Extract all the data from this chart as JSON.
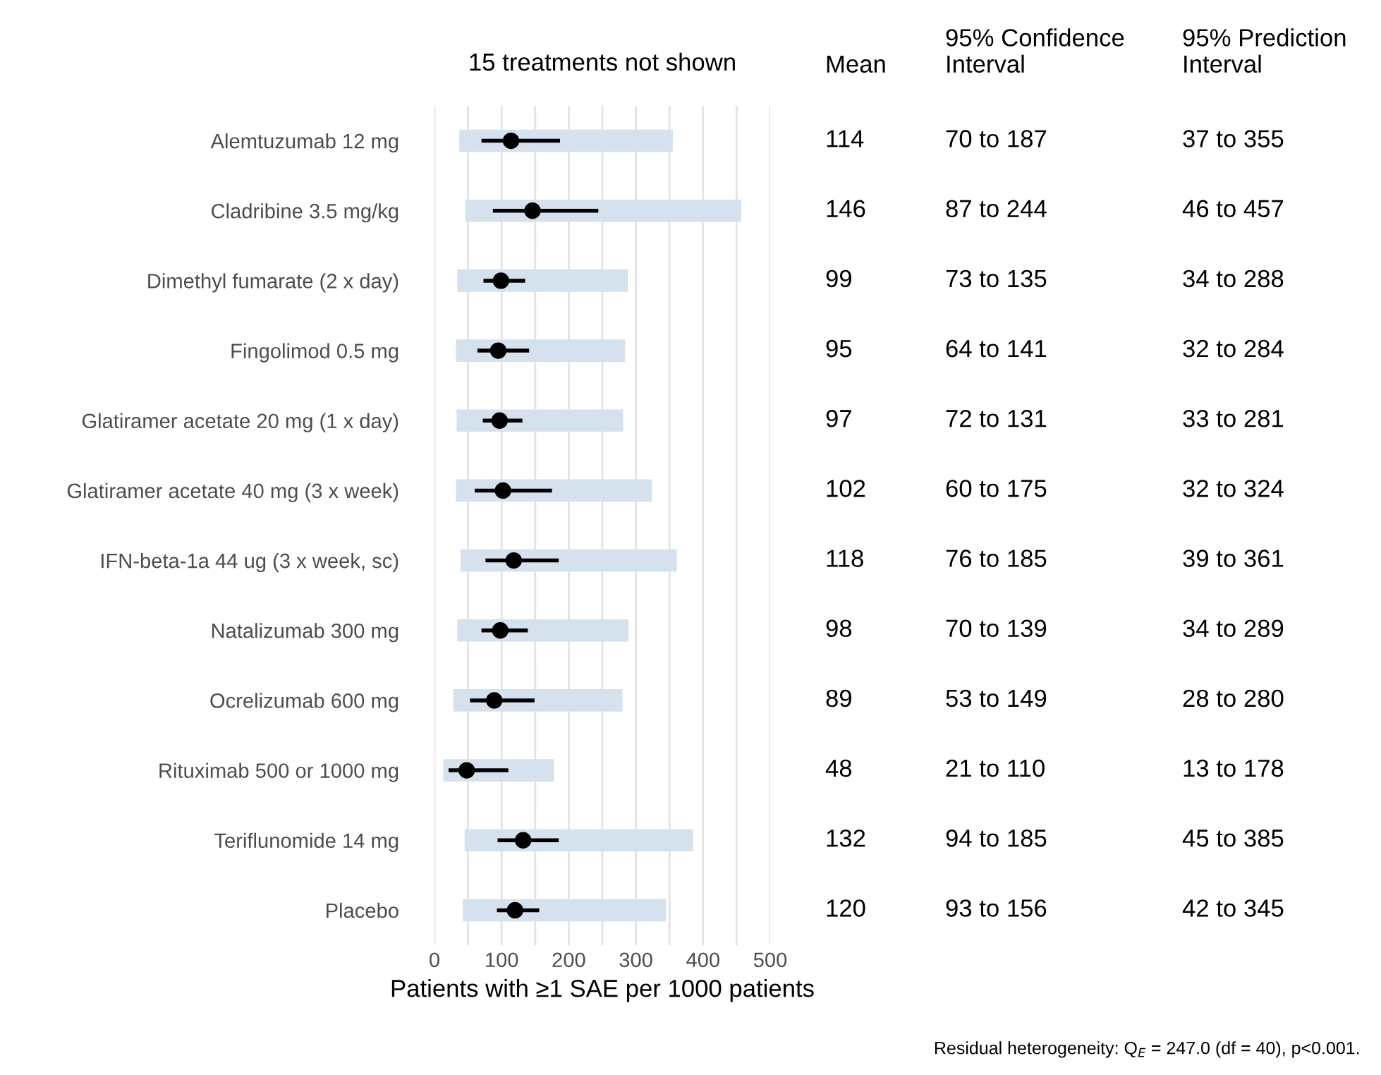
{
  "chart_data": {
    "type": "scatter",
    "orientation": "horizontal",
    "title": "15 treatments not shown",
    "xlabel": "Patients with ≥1 SAE per 1000 patients",
    "categories": [
      "Alemtuzumab 12 mg",
      "Cladribine 3.5 mg/kg",
      "Dimethyl fumarate (2 x day)",
      "Fingolimod 0.5 mg",
      "Glatiramer acetate 20 mg (1 x day)",
      "Glatiramer acetate 40 mg (3 x week)",
      "IFN-beta-1a 44 ug (3 x week, sc)",
      "Natalizumab 300 mg",
      "Ocrelizumab 600 mg",
      "Rituximab 500 or 1000 mg",
      "Teriflunomide 14 mg",
      "Placebo"
    ],
    "series": [
      {
        "type": "bar",
        "color": "#d5e1ed",
        "base": [
          37,
          46,
          34,
          32,
          33,
          32,
          39,
          34,
          28,
          13,
          45,
          42
        ],
        "values": [
          318,
          411,
          254,
          252,
          248,
          292,
          322,
          255,
          252,
          165,
          340,
          303
        ]
      },
      {
        "color": "#000000",
        "values": [
          114,
          146,
          99,
          95,
          97,
          102,
          118,
          98,
          89,
          48,
          132,
          120
        ],
        "errors": [
          [
            70,
            187
          ],
          [
            87,
            244
          ],
          [
            73,
            135
          ],
          [
            64,
            141
          ],
          [
            72,
            131
          ],
          [
            60,
            175
          ],
          [
            76,
            185
          ],
          [
            70,
            139
          ],
          [
            53,
            149
          ],
          [
            21,
            110
          ],
          [
            94,
            185
          ],
          [
            93,
            156
          ]
        ]
      }
    ],
    "xlim": [
      0,
      500
    ],
    "xticks": [
      0,
      {
        "value": 50,
        "label": null
      },
      100,
      {
        "value": 150,
        "label": null
      },
      200,
      {
        "value": 250,
        "label": null
      },
      300,
      {
        "value": 350,
        "label": null
      },
      400,
      {
        "value": 450,
        "label": null
      },
      500
    ],
    "grid": "x",
    "legend": false,
    "marker": "circle",
    "annotations": [
      "Mean",
      "95% Confidence\nInterval",
      "95% Prediction\nInterval",
      "114",
      "70 to 187",
      "37 to 355",
      "146",
      "87 to 244",
      "46 to 457",
      "99",
      "73 to 135",
      "34 to 288",
      "95",
      "64 to 141",
      "32 to 284",
      "97",
      "72 to 131",
      "33 to 281",
      "102",
      "60 to 175",
      "32 to 324",
      "118",
      "76 to 185",
      "39 to 361",
      "98",
      "70 to 139",
      "34 to 289",
      "89",
      "53 to 149",
      "28 to 280",
      "48",
      "21 to 110",
      "13 to 178",
      "132",
      "94 to 185",
      "45 to 385",
      "120",
      "93 to 156",
      "42 to 345",
      "Residual heterogeneity: Q$_{E}$ = 247.0 (df = 40), p<0.001."
    ]
  }
}
